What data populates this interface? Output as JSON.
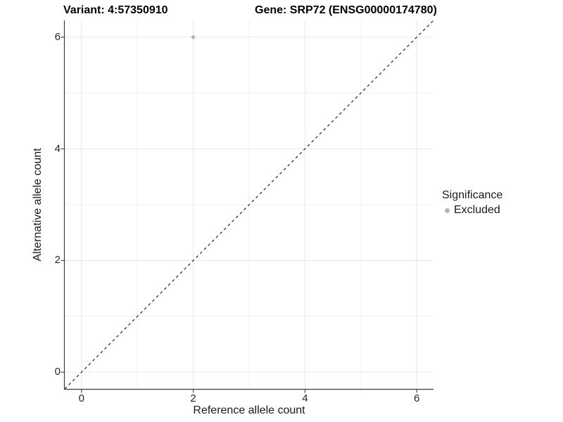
{
  "titles": {
    "variant": "Variant: 4:57350910",
    "gene": "Gene: SRP72 (ENSG00000174780)"
  },
  "axes": {
    "x_label": "Reference allele count",
    "y_label": "Alternative allele count"
  },
  "legend": {
    "title": "Significance",
    "items": [
      {
        "label": "Excluded",
        "color": "#b4b4b4"
      }
    ]
  },
  "colors": {
    "background": "#ffffff",
    "axis_line": "#3d3d3d",
    "tick_mark": "#3d3d3d",
    "grid_major": "#e6e6e6",
    "grid_minor": "#f1f1f1",
    "reference_line": "#111111",
    "point": "#b4b4b4"
  },
  "chart_data": {
    "type": "scatter",
    "title": "Variant: 4:57350910   Gene: SRP72 (ENSG00000174780)",
    "xlabel": "Reference allele count",
    "ylabel": "Alternative allele count",
    "xlim": [
      -0.3,
      6.3
    ],
    "ylim": [
      -0.3,
      6.3
    ],
    "xticks": [
      0,
      2,
      4,
      6
    ],
    "yticks": [
      0,
      2,
      4,
      6
    ],
    "minor_xticks": [
      1,
      3,
      5
    ],
    "minor_yticks": [
      1,
      3,
      5
    ],
    "grid": true,
    "legend_position": "right",
    "series": [
      {
        "name": "Excluded",
        "color": "#b4b4b4",
        "points": [
          {
            "x": 2,
            "y": 6
          }
        ]
      }
    ],
    "reference_line": {
      "type": "identity",
      "slope": 1,
      "intercept": 0,
      "style": "dashed"
    }
  }
}
